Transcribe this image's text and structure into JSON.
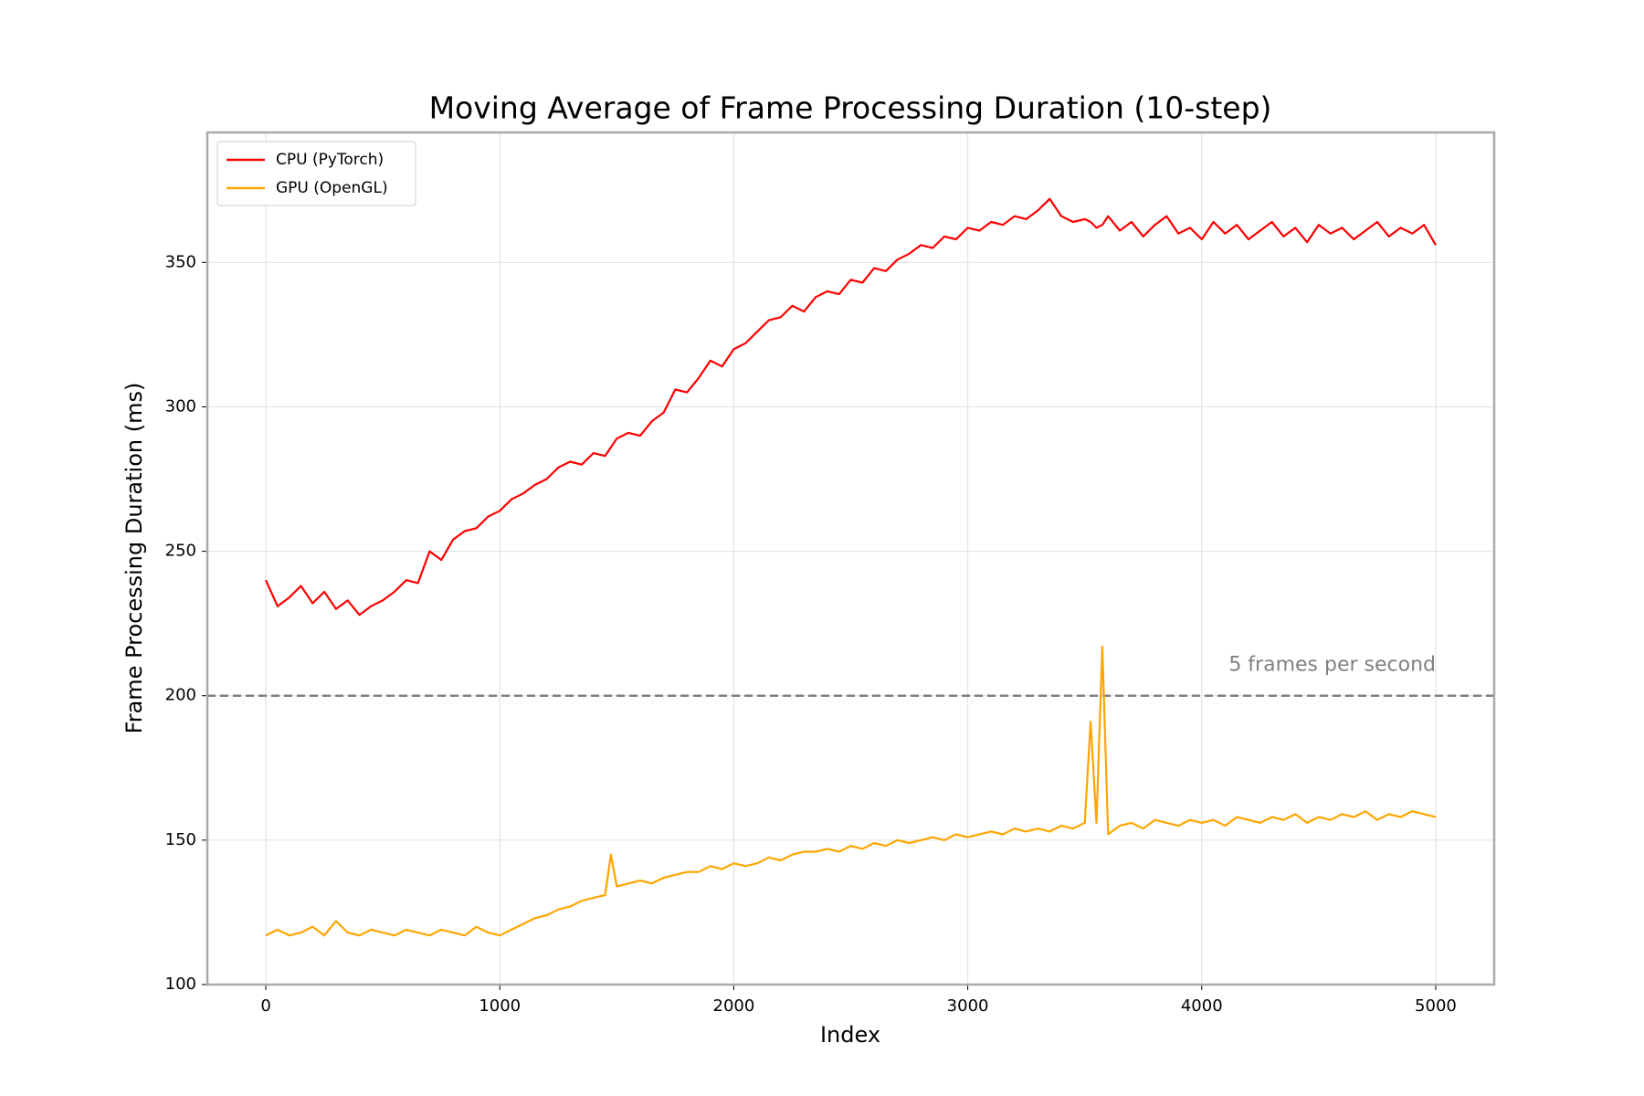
{
  "chart_data": {
    "type": "line",
    "title": "Moving Average of Frame Processing Duration (10-step)",
    "xlabel": "Index",
    "ylabel": "Frame Processing Duration (ms)",
    "x": [
      0,
      50,
      100,
      150,
      200,
      250,
      300,
      350,
      400,
      450,
      500,
      550,
      600,
      650,
      700,
      750,
      800,
      850,
      900,
      950,
      1000,
      1050,
      1100,
      1150,
      1200,
      1250,
      1300,
      1350,
      1400,
      1450,
      1475,
      1500,
      1550,
      1600,
      1650,
      1700,
      1750,
      1800,
      1850,
      1900,
      1950,
      2000,
      2050,
      2100,
      2150,
      2200,
      2250,
      2300,
      2350,
      2400,
      2450,
      2500,
      2550,
      2600,
      2650,
      2700,
      2750,
      2800,
      2850,
      2900,
      2950,
      3000,
      3050,
      3100,
      3150,
      3200,
      3250,
      3300,
      3350,
      3400,
      3450,
      3500,
      3525,
      3550,
      3575,
      3600,
      3650,
      3700,
      3750,
      3800,
      3850,
      3900,
      3950,
      4000,
      4050,
      4100,
      4150,
      4200,
      4250,
      4300,
      4350,
      4400,
      4450,
      4500,
      4550,
      4600,
      4650,
      4700,
      4750,
      4800,
      4850,
      4900,
      4950,
      5000
    ],
    "series": [
      {
        "name": "CPU (PyTorch)",
        "color": "#ff0000",
        "values": [
          240,
          231,
          234,
          238,
          232,
          236,
          230,
          233,
          228,
          231,
          233,
          236,
          240,
          239,
          250,
          247,
          254,
          257,
          258,
          262,
          264,
          268,
          270,
          273,
          275,
          279,
          281,
          280,
          284,
          283,
          286,
          289,
          291,
          290,
          295,
          298,
          306,
          305,
          310,
          316,
          314,
          320,
          322,
          326,
          330,
          331,
          335,
          333,
          338,
          340,
          339,
          344,
          343,
          348,
          347,
          351,
          353,
          356,
          355,
          359,
          358,
          362,
          361,
          364,
          363,
          366,
          365,
          368,
          372,
          366,
          364,
          365,
          364,
          362,
          363,
          366,
          361,
          364,
          359,
          363,
          366,
          360,
          362,
          358,
          364,
          360,
          363,
          358,
          361,
          364,
          359,
          362,
          357,
          363,
          360,
          362,
          358,
          361,
          364,
          359,
          362,
          360,
          363,
          356
        ]
      },
      {
        "name": "GPU (OpenGL)",
        "color": "#ffa500",
        "values": [
          117,
          119,
          117,
          118,
          120,
          117,
          122,
          118,
          117,
          119,
          118,
          117,
          119,
          118,
          117,
          119,
          118,
          117,
          120,
          118,
          117,
          119,
          121,
          123,
          124,
          126,
          127,
          129,
          130,
          131,
          145,
          134,
          135,
          136,
          135,
          137,
          138,
          139,
          139,
          141,
          140,
          142,
          141,
          142,
          144,
          143,
          145,
          146,
          146,
          147,
          146,
          148,
          147,
          149,
          148,
          150,
          149,
          150,
          151,
          150,
          152,
          151,
          152,
          153,
          152,
          154,
          153,
          154,
          153,
          155,
          154,
          156,
          191,
          156,
          217,
          152,
          155,
          156,
          154,
          157,
          156,
          155,
          157,
          156,
          157,
          155,
          158,
          157,
          156,
          158,
          157,
          159,
          156,
          158,
          157,
          159,
          158,
          160,
          157,
          159,
          158,
          160,
          159,
          158
        ]
      }
    ],
    "reference_line": {
      "value": 200,
      "label": "5 frames per second",
      "color": "#808080"
    },
    "xlim": [
      -250,
      5250
    ],
    "ylim": [
      100,
      395
    ],
    "xticks": [
      0,
      1000,
      2000,
      3000,
      4000,
      5000
    ],
    "yticks": [
      100,
      150,
      200,
      250,
      300,
      350
    ],
    "grid": true,
    "legend": "upper left"
  }
}
